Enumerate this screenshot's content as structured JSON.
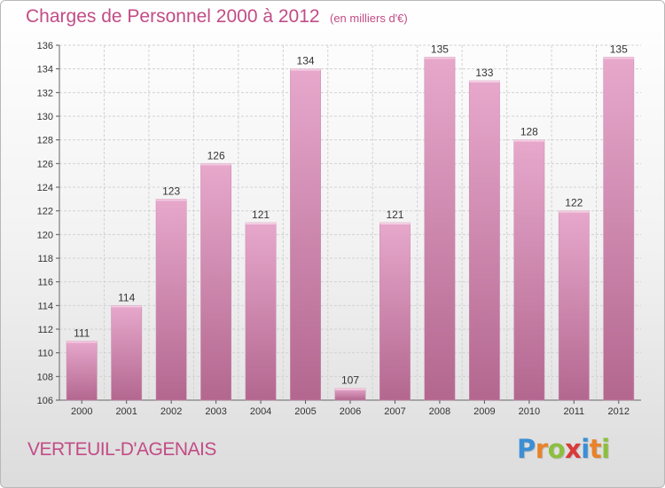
{
  "title": "Charges de Personnel 2000 à 2012",
  "subtitle": "(en milliers d'€)",
  "place_name": "VERTEUIL-D'AGENAIS",
  "logo": {
    "letters": [
      "P",
      "r",
      "o",
      "x",
      "i",
      "t",
      "i"
    ],
    "colors": [
      "#3b8fd4",
      "#e8832a",
      "#8cbf3f",
      "#d93a3a",
      "#3b8fd4",
      "#e8832a",
      "#8cbf3f"
    ]
  },
  "colors": {
    "bar_light": "#e7a8cc",
    "bar_dark": "#b3678f",
    "text_accent": "#c24c86",
    "grid": "#d2d2d2",
    "axis_text": "#333333"
  },
  "chart_data": {
    "type": "bar",
    "title": "Charges de Personnel 2000 à 2012",
    "subtitle": "(en milliers d'€)",
    "categories": [
      "2000",
      "2001",
      "2002",
      "2003",
      "2004",
      "2005",
      "2006",
      "2007",
      "2008",
      "2009",
      "2010",
      "2011",
      "2012"
    ],
    "values": [
      111,
      114,
      123,
      126,
      121,
      134,
      107,
      121,
      135,
      133,
      128,
      122,
      135
    ],
    "ylim": [
      106,
      136
    ],
    "yticks": [
      106,
      108,
      110,
      112,
      114,
      116,
      118,
      120,
      122,
      124,
      126,
      128,
      130,
      132,
      134,
      136
    ],
    "grid": true,
    "data_labels": true
  }
}
